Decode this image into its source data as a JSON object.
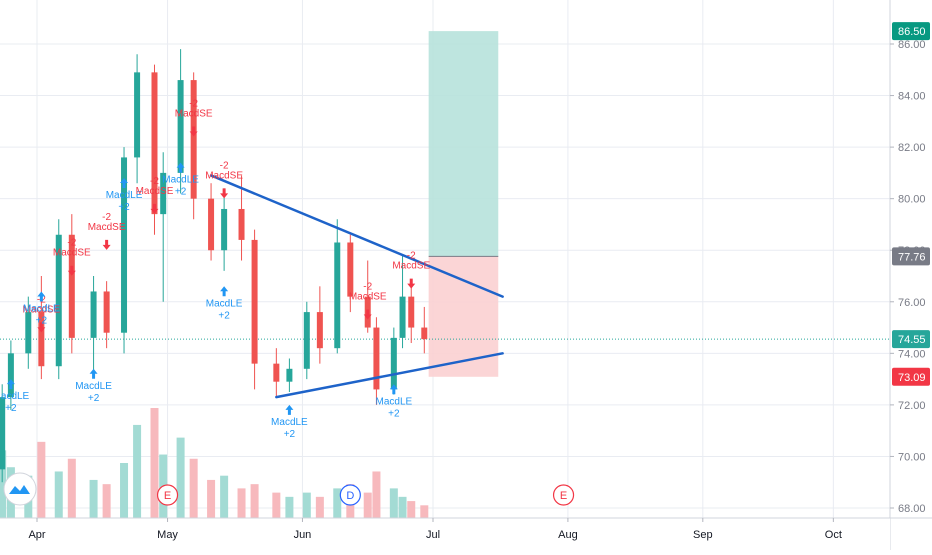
{
  "chart_data": {
    "type": "candlestick",
    "title": "",
    "xlabel": "",
    "ylabel": "",
    "x_ticks": [
      "Apr",
      "May",
      "Jun",
      "Jul",
      "Aug",
      "Sep",
      "Oct"
    ],
    "y_ticks": [
      "86.00",
      "84.00",
      "82.00",
      "80.00",
      "78.00",
      "76.00",
      "74.00",
      "72.00",
      "70.00",
      "68.00"
    ],
    "ylim": [
      67.8,
      87.3
    ],
    "grid": true,
    "price_badges": [
      {
        "label": "86.50",
        "value": 86.5,
        "color": "#089981"
      },
      {
        "label": "77.76",
        "value": 77.76,
        "color": "#787b86"
      },
      {
        "label": "74.55",
        "value": 74.55,
        "color": "#26a69a"
      },
      {
        "label": "73.09",
        "value": 73.09,
        "color": "#f23645"
      }
    ],
    "candles": [
      {
        "date": "2020-03-24",
        "o": 69.5,
        "h": 72.8,
        "l": 69.0,
        "c": 72.3
      },
      {
        "date": "2020-03-26",
        "o": 72.3,
        "h": 74.5,
        "l": 71.8,
        "c": 74.0
      },
      {
        "date": "2020-03-30",
        "o": 74.0,
        "h": 76.2,
        "l": 73.4,
        "c": 75.6
      },
      {
        "date": "2020-04-02",
        "o": 75.6,
        "h": 77.0,
        "l": 73.0,
        "c": 73.5
      },
      {
        "date": "2020-04-06",
        "o": 73.5,
        "h": 79.2,
        "l": 73.0,
        "c": 78.6
      },
      {
        "date": "2020-04-09",
        "o": 78.6,
        "h": 79.4,
        "l": 74.0,
        "c": 74.6
      },
      {
        "date": "2020-04-14",
        "o": 74.6,
        "h": 77.0,
        "l": 73.2,
        "c": 76.4
      },
      {
        "date": "2020-04-17",
        "o": 76.4,
        "h": 76.8,
        "l": 74.2,
        "c": 74.8
      },
      {
        "date": "2020-04-21",
        "o": 74.8,
        "h": 82.0,
        "l": 74.0,
        "c": 81.6
      },
      {
        "date": "2020-04-24",
        "o": 81.6,
        "h": 85.6,
        "l": 80.6,
        "c": 84.9
      },
      {
        "date": "2020-04-28",
        "o": 84.9,
        "h": 85.2,
        "l": 78.6,
        "c": 79.4
      },
      {
        "date": "2020-04-30",
        "o": 79.4,
        "h": 81.8,
        "l": 76.0,
        "c": 81.0
      },
      {
        "date": "2020-05-04",
        "o": 81.0,
        "h": 85.8,
        "l": 80.2,
        "c": 84.6
      },
      {
        "date": "2020-05-07",
        "o": 84.6,
        "h": 84.9,
        "l": 79.2,
        "c": 80.0
      },
      {
        "date": "2020-05-11",
        "o": 80.0,
        "h": 80.6,
        "l": 77.6,
        "c": 78.0
      },
      {
        "date": "2020-05-14",
        "o": 78.0,
        "h": 80.4,
        "l": 77.2,
        "c": 79.6
      },
      {
        "date": "2020-05-18",
        "o": 79.6,
        "h": 80.9,
        "l": 77.6,
        "c": 78.4
      },
      {
        "date": "2020-05-21",
        "o": 78.4,
        "h": 78.8,
        "l": 72.6,
        "c": 73.6
      },
      {
        "date": "2020-05-26",
        "o": 73.6,
        "h": 74.2,
        "l": 72.3,
        "c": 72.9
      },
      {
        "date": "2020-05-29",
        "o": 72.9,
        "h": 73.8,
        "l": 72.5,
        "c": 73.4
      },
      {
        "date": "2020-06-02",
        "o": 73.4,
        "h": 76.0,
        "l": 73.0,
        "c": 75.6
      },
      {
        "date": "2020-06-05",
        "o": 75.6,
        "h": 76.6,
        "l": 73.6,
        "c": 74.2
      },
      {
        "date": "2020-06-09",
        "o": 74.2,
        "h": 79.2,
        "l": 74.0,
        "c": 78.3
      },
      {
        "date": "2020-06-12",
        "o": 78.3,
        "h": 78.6,
        "l": 75.6,
        "c": 76.2
      },
      {
        "date": "2020-06-16",
        "o": 76.2,
        "h": 77.6,
        "l": 74.8,
        "c": 75.0
      },
      {
        "date": "2020-06-18",
        "o": 75.0,
        "h": 75.4,
        "l": 72.0,
        "c": 72.6
      },
      {
        "date": "2020-06-22",
        "o": 72.6,
        "h": 75.0,
        "l": 72.4,
        "c": 74.6
      },
      {
        "date": "2020-06-24",
        "o": 74.6,
        "h": 77.8,
        "l": 74.2,
        "c": 76.2
      },
      {
        "date": "2020-06-26",
        "o": 76.2,
        "h": 76.6,
        "l": 74.4,
        "c": 75.0
      },
      {
        "date": "2020-06-29",
        "o": 75.0,
        "h": 75.8,
        "l": 74.0,
        "c": 74.55
      }
    ],
    "trendlines": [
      {
        "name": "resistance",
        "color": "#1e63c9",
        "from": {
          "date": "2020-05-11",
          "value": 80.9
        },
        "to": {
          "date": "2020-07-17",
          "value": 76.2
        }
      },
      {
        "name": "support",
        "color": "#1e63c9",
        "from": {
          "date": "2020-05-26",
          "value": 72.3
        },
        "to": {
          "date": "2020-07-17",
          "value": 74.0
        }
      }
    ],
    "position_zone": {
      "from_date": "2020-06-30",
      "to_date": "2020-07-16",
      "target": 86.5,
      "entry": 77.76,
      "stop": 73.09,
      "target_color": "#b7e2dc",
      "stop_color": "#fbd0d1"
    },
    "current_price_line": 74.55,
    "signals": [
      {
        "label": "MacdLE",
        "sub": "+2",
        "direction": "up",
        "date": "2020-03-26",
        "price": 73.0
      },
      {
        "label": "MacdSE",
        "sub": "-2",
        "direction": "down",
        "date": "2020-04-02",
        "price": 75.2
      },
      {
        "label": "MacdLE",
        "sub": "+2",
        "direction": "up",
        "date": "2020-04-02",
        "price": 76.4
      },
      {
        "label": "MacdSE",
        "sub": "-2",
        "direction": "down",
        "date": "2020-04-09",
        "price": 77.4
      },
      {
        "label": "MacdLE",
        "sub": "+2",
        "direction": "up",
        "date": "2020-04-14",
        "price": 73.4
      },
      {
        "label": "MacdSE",
        "sub": "-2",
        "direction": "down",
        "date": "2020-04-17",
        "price": 78.4
      },
      {
        "label": "MacdLE",
        "sub": "+2",
        "direction": "up",
        "date": "2020-04-21",
        "price": 80.8
      },
      {
        "label": "MacdSE",
        "sub": "-2",
        "direction": "down",
        "date": "2020-04-28",
        "price": 79.8
      },
      {
        "label": "MacdLE",
        "sub": "+2",
        "direction": "up",
        "date": "2020-05-04",
        "price": 81.4
      },
      {
        "label": "MacdSE",
        "sub": "-2",
        "direction": "down",
        "date": "2020-05-07",
        "price": 82.8
      },
      {
        "label": "MacdSE",
        "sub": "-2",
        "direction": "down",
        "date": "2020-05-14",
        "price": 80.4
      },
      {
        "label": "MacdLE",
        "sub": "+2",
        "direction": "up",
        "date": "2020-05-14",
        "price": 76.6
      },
      {
        "label": "MacdLE",
        "sub": "+2",
        "direction": "up",
        "date": "2020-05-29",
        "price": 72.0
      },
      {
        "label": "MacdSE",
        "sub": "-2",
        "direction": "down",
        "date": "2020-06-16",
        "price": 75.7
      },
      {
        "label": "MacdLE",
        "sub": "+2",
        "direction": "up",
        "date": "2020-06-22",
        "price": 72.8
      },
      {
        "label": "MacdSE",
        "sub": "-2",
        "direction": "down",
        "date": "2020-06-26",
        "price": 76.9
      }
    ],
    "volume": [
      {
        "date": "2020-03-24",
        "value": 32
      },
      {
        "date": "2020-03-26",
        "value": 24
      },
      {
        "date": "2020-03-30",
        "value": 20
      },
      {
        "date": "2020-04-02",
        "value": 36
      },
      {
        "date": "2020-04-06",
        "value": 22
      },
      {
        "date": "2020-04-09",
        "value": 28
      },
      {
        "date": "2020-04-14",
        "value": 18
      },
      {
        "date": "2020-04-17",
        "value": 16
      },
      {
        "date": "2020-04-21",
        "value": 26
      },
      {
        "date": "2020-04-24",
        "value": 44
      },
      {
        "date": "2020-04-28",
        "value": 52
      },
      {
        "date": "2020-04-30",
        "value": 30
      },
      {
        "date": "2020-05-04",
        "value": 38
      },
      {
        "date": "2020-05-07",
        "value": 28
      },
      {
        "date": "2020-05-11",
        "value": 18
      },
      {
        "date": "2020-05-14",
        "value": 20
      },
      {
        "date": "2020-05-18",
        "value": 14
      },
      {
        "date": "2020-05-21",
        "value": 16
      },
      {
        "date": "2020-05-26",
        "value": 12
      },
      {
        "date": "2020-05-29",
        "value": 10
      },
      {
        "date": "2020-06-02",
        "value": 12
      },
      {
        "date": "2020-06-05",
        "value": 10
      },
      {
        "date": "2020-06-09",
        "value": 14
      },
      {
        "date": "2020-06-12",
        "value": 16
      },
      {
        "date": "2020-06-16",
        "value": 12
      },
      {
        "date": "2020-06-18",
        "value": 22
      },
      {
        "date": "2020-06-22",
        "value": 14
      },
      {
        "date": "2020-06-24",
        "value": 10
      },
      {
        "date": "2020-06-26",
        "value": 8
      },
      {
        "date": "2020-06-29",
        "value": 6
      }
    ],
    "events": [
      {
        "label": "E",
        "date": "2020-05-01",
        "color": "#f23645"
      },
      {
        "label": "D",
        "date": "2020-06-12",
        "color": "#2962ff"
      },
      {
        "label": "E",
        "date": "2020-07-31",
        "color": "#f23645"
      }
    ],
    "watermark": "tradingview-logo-icon"
  }
}
